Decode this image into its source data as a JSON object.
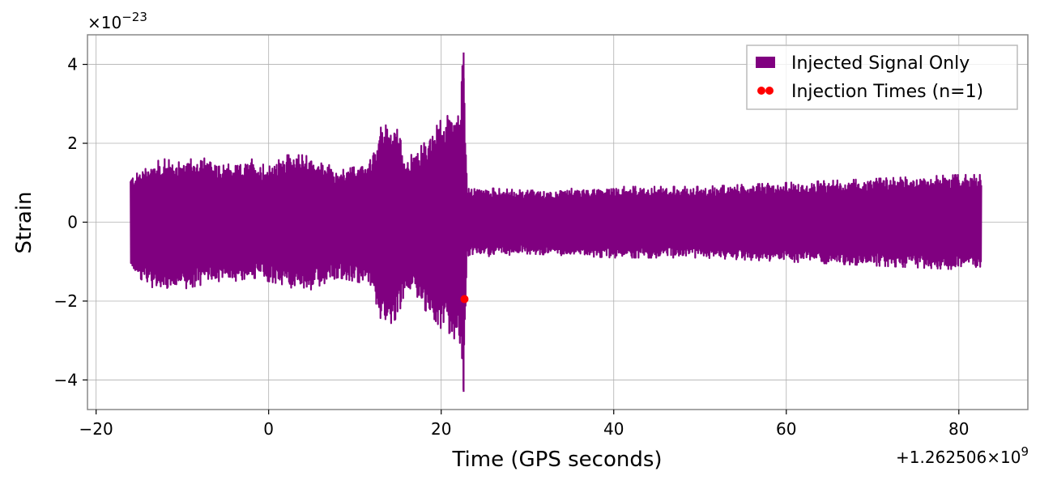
{
  "chart_data": {
    "type": "line",
    "xlabel": "Time (GPS seconds)",
    "ylabel": "Strain",
    "x_offset_label": "+1.262506×10",
    "x_offset_exponent": "9",
    "y_scale_label": "×10",
    "y_scale_exponent": "−23",
    "xlim": [
      -21,
      88
    ],
    "ylim": [
      -4.75,
      4.75
    ],
    "xticks": [
      -20,
      0,
      20,
      40,
      60,
      80
    ],
    "xtick_labels": [
      "−20",
      "0",
      "20",
      "40",
      "60",
      "80"
    ],
    "yticks": [
      -4,
      -2,
      0,
      2,
      4
    ],
    "ytick_labels": [
      "−4",
      "−2",
      "0",
      "2",
      "4"
    ],
    "grid": true,
    "legend_position": "top-right",
    "series": [
      {
        "name": "Injected Signal Only",
        "color": "#800080",
        "x_range": [
          -16,
          82.6
        ],
        "envelope": {
          "x": [
            -16,
            -14,
            -12,
            -10,
            -8,
            -6,
            -4,
            -2,
            0,
            2,
            4,
            6,
            8,
            10,
            12,
            13,
            14,
            15,
            16,
            17,
            18,
            19,
            20,
            21,
            22,
            22.6,
            23,
            30,
            40,
            50,
            60,
            70,
            80,
            82.6
          ],
          "upper": [
            1.2,
            1.5,
            1.6,
            1.5,
            1.7,
            1.4,
            1.5,
            1.6,
            1.4,
            1.7,
            1.7,
            1.6,
            1.3,
            1.4,
            1.6,
            2.4,
            2.5,
            2.5,
            1.6,
            1.8,
            2.0,
            2.3,
            2.6,
            3.0,
            2.9,
            4.3,
            0.9,
            0.8,
            0.9,
            0.9,
            1.0,
            1.1,
            1.2,
            1.2
          ],
          "lower": [
            -1.2,
            -1.6,
            -1.8,
            -1.7,
            -1.6,
            -1.5,
            -1.5,
            -1.4,
            -1.5,
            -1.6,
            -1.8,
            -1.6,
            -1.4,
            -1.5,
            -1.6,
            -2.6,
            -2.6,
            -2.4,
            -1.6,
            -1.8,
            -2.2,
            -2.4,
            -2.7,
            -3.0,
            -2.9,
            -4.3,
            -0.9,
            -0.8,
            -0.9,
            -0.9,
            -1.0,
            -1.1,
            -1.2,
            -1.2
          ]
        }
      },
      {
        "name": "Injection Times (n=1)",
        "color": "#ff0000",
        "type": "scatter",
        "points": [
          {
            "x": 22.7,
            "y": -1.95
          }
        ]
      }
    ]
  }
}
